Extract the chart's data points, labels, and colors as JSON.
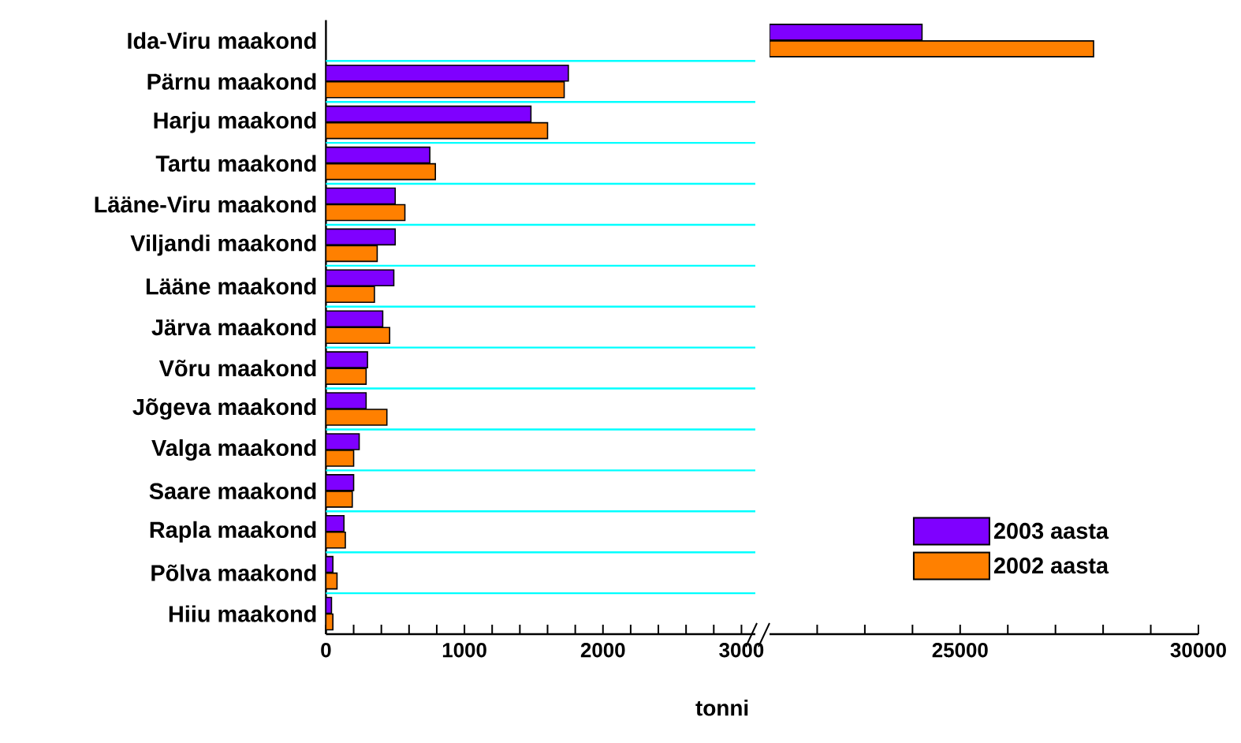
{
  "chart_data": [
    {
      "type": "bar",
      "orientation": "horizontal",
      "xlabel": "tonni",
      "grid": "y",
      "categories": [
        "Ida-Viru maakond",
        "Pärnu maakond",
        "Harju maakond",
        "Tartu maakond",
        "Lääne-Viru maakond",
        "Viljandi maakond",
        "Lääne maakond",
        "Järva maakond",
        "Võru maakond",
        "Jõgeva maakond",
        "Valga maakond",
        "Saare maakond",
        "Rapla maakond",
        "Põlva maakond",
        "Hiiu maakond"
      ],
      "series": [
        {
          "color": "#7f00ff",
          "values": [
            null,
            1750,
            1480,
            750,
            500,
            500,
            490,
            410,
            300,
            290,
            240,
            200,
            130,
            50,
            40
          ]
        },
        {
          "color": "#ff8000",
          "values": [
            null,
            1720,
            1600,
            790,
            570,
            370,
            350,
            460,
            290,
            440,
            200,
            190,
            140,
            80,
            50
          ]
        }
      ],
      "xlim": [
        0,
        3100
      ],
      "xticks": [
        0,
        {
          "value": 200,
          "label": null
        },
        {
          "value": 400,
          "label": null
        },
        {
          "value": 600,
          "label": null
        },
        {
          "value": 800,
          "label": null
        },
        1000,
        {
          "value": 1200,
          "label": null
        },
        {
          "value": 1400,
          "label": null
        },
        {
          "value": 1600,
          "label": null
        },
        {
          "value": 1800,
          "label": null
        },
        2000,
        {
          "value": 2200,
          "label": null
        },
        {
          "value": 2400,
          "label": null
        },
        {
          "value": 2600,
          "label": null
        },
        {
          "value": 2800,
          "label": null
        },
        3000
      ]
    },
    {
      "type": "bar",
      "orientation": "horizontal",
      "grid": "y",
      "tick_labels": "x",
      "legend": "bottom right",
      "series": [
        {
          "name": "2003 aasta",
          "color": "#7f00ff",
          "values": [
            24200,
            null,
            null,
            null,
            null,
            null,
            null,
            null,
            null,
            null,
            null,
            null,
            null,
            null,
            null
          ]
        },
        {
          "name": "2002 aasta",
          "color": "#ff8000",
          "values": [
            27800,
            null,
            null,
            null,
            null,
            null,
            null,
            null,
            null,
            null,
            null,
            null,
            null,
            null,
            null
          ]
        }
      ],
      "xlim": [
        21000,
        30000
      ],
      "xticks": [
        {
          "value": 22000,
          "label": null
        },
        {
          "value": 23000,
          "label": null
        },
        {
          "value": 24000,
          "label": null
        },
        25000,
        {
          "value": 26000,
          "label": null
        },
        {
          "value": 27000,
          "label": null
        },
        {
          "value": 28000,
          "label": null
        },
        {
          "value": 29000,
          "label": null
        },
        30000
      ]
    }
  ]
}
